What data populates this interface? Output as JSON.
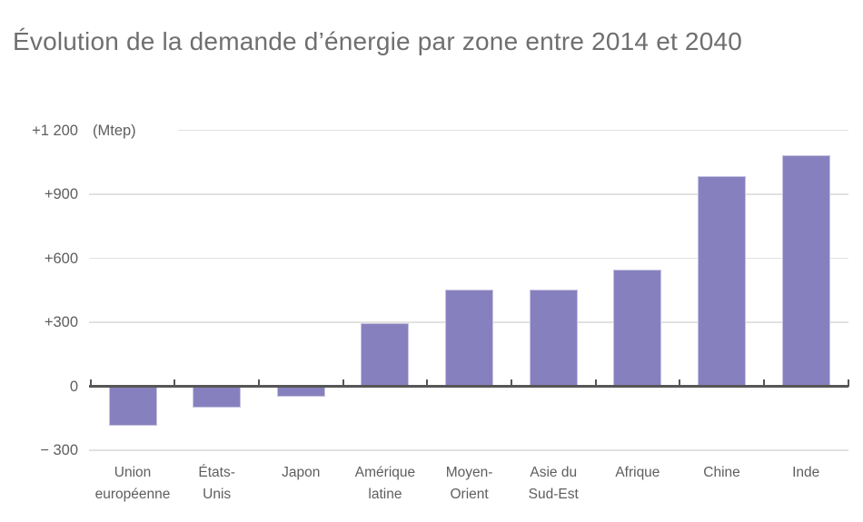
{
  "title": "Évolution de la demande d’énergie par zone entre 2014 et 2040",
  "unit_label": "(Mtep)",
  "colors": {
    "bar": "#8681be",
    "bar_edge": "#c6c3e0",
    "axis": "#565656",
    "gridline": "#e2e2e2",
    "title_text": "#6f6f6f",
    "label_text": "#5e5e5e"
  },
  "chart_data": {
    "type": "bar",
    "title": "Évolution de la demande d’énergie par zone entre 2014 et 2040",
    "unit": "Mtep",
    "categories": [
      "Union européenne",
      "États-Unis",
      "Japon",
      "Amérique latine",
      "Moyen-Orient",
      "Asie du Sud-Est",
      "Afrique",
      "Chine",
      "Inde"
    ],
    "category_label_lines": [
      [
        "Union",
        "européenne"
      ],
      [
        "États-",
        "Unis"
      ],
      [
        "Japon"
      ],
      [
        "Amérique",
        "latine"
      ],
      [
        "Moyen-",
        "Orient"
      ],
      [
        "Asie du",
        "Sud-Est"
      ],
      [
        "Afrique"
      ],
      [
        "Chine"
      ],
      [
        "Inde"
      ]
    ],
    "values": [
      -185,
      -100,
      -50,
      295,
      455,
      455,
      545,
      985,
      1085
    ],
    "y_ticks": [
      {
        "label": "+1 200",
        "value": 1200
      },
      {
        "label": "+900",
        "value": 900
      },
      {
        "label": "+600",
        "value": 600
      },
      {
        "label": "+300",
        "value": 300
      },
      {
        "label": "0",
        "value": 0
      },
      {
        "label": "− 300",
        "value": -300
      }
    ],
    "ylim": [
      -300,
      1200
    ],
    "grid": true,
    "legend": "none",
    "xlabel": "",
    "ylabel": "Mtep"
  }
}
